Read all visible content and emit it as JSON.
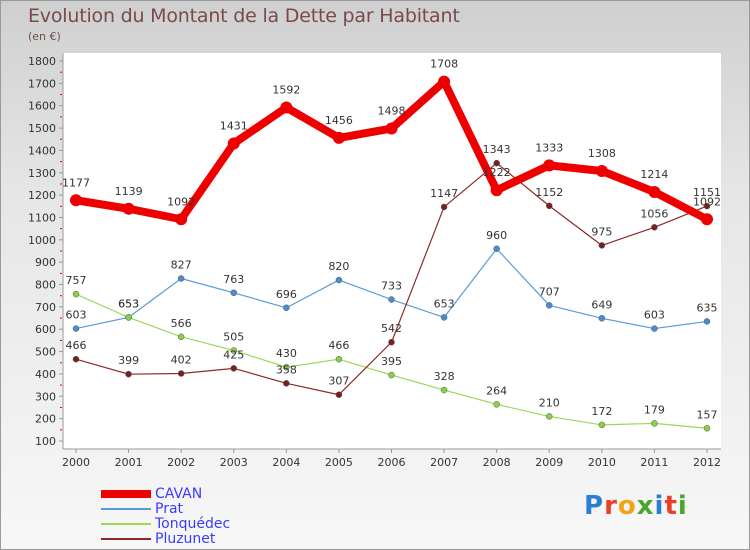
{
  "title": "Evolution du Montant de la Dette par Habitant",
  "subtitle": "(en €)",
  "logo": {
    "letters": [
      {
        "char": "P",
        "color": "#2b7fd0"
      },
      {
        "char": "r",
        "color": "#e8402a"
      },
      {
        "char": "o",
        "color": "#f2a316"
      },
      {
        "char": "x",
        "color": "#4aa82c"
      },
      {
        "char": "i",
        "color": "#2b7fd0"
      },
      {
        "char": "t",
        "color": "#e8402a"
      },
      {
        "char": "i",
        "color": "#4aa82c"
      }
    ]
  },
  "chart_data": {
    "type": "line",
    "title": "Evolution du Montant de la Dette par Habitant",
    "subtitle": "(en €)",
    "x": [
      "2000",
      "2001",
      "2002",
      "2003",
      "2004",
      "2005",
      "2006",
      "2007",
      "2008",
      "2009",
      "2010",
      "2011",
      "2012"
    ],
    "ylim": [
      100,
      1800
    ],
    "yticks": [
      100,
      200,
      300,
      400,
      500,
      600,
      700,
      800,
      900,
      1000,
      1100,
      1200,
      1300,
      1400,
      1500,
      1600,
      1700,
      1800
    ],
    "grid": false,
    "legend_position": "bottom-left",
    "series": [
      {
        "name": "CAVAN",
        "color": "#ee0000",
        "values": [
          1177,
          1139,
          1092,
          1431,
          1592,
          1456,
          1498,
          1708,
          1222,
          1333,
          1308,
          1214,
          1092
        ]
      },
      {
        "name": "Prat",
        "color": "#5b9bd5",
        "values": [
          603,
          653,
          827,
          763,
          696,
          820,
          733,
          653,
          960,
          707,
          649,
          603,
          635
        ]
      },
      {
        "name": "Tonquédec",
        "color": "#99d955",
        "values": [
          757,
          653,
          566,
          505,
          430,
          466,
          395,
          328,
          264,
          210,
          172,
          179,
          157
        ]
      },
      {
        "name": "Pluzunet",
        "color": "#8b2a2a",
        "values": [
          466,
          399,
          402,
          425,
          358,
          307,
          542,
          1147,
          1343,
          1152,
          975,
          1056,
          1151
        ]
      }
    ]
  }
}
